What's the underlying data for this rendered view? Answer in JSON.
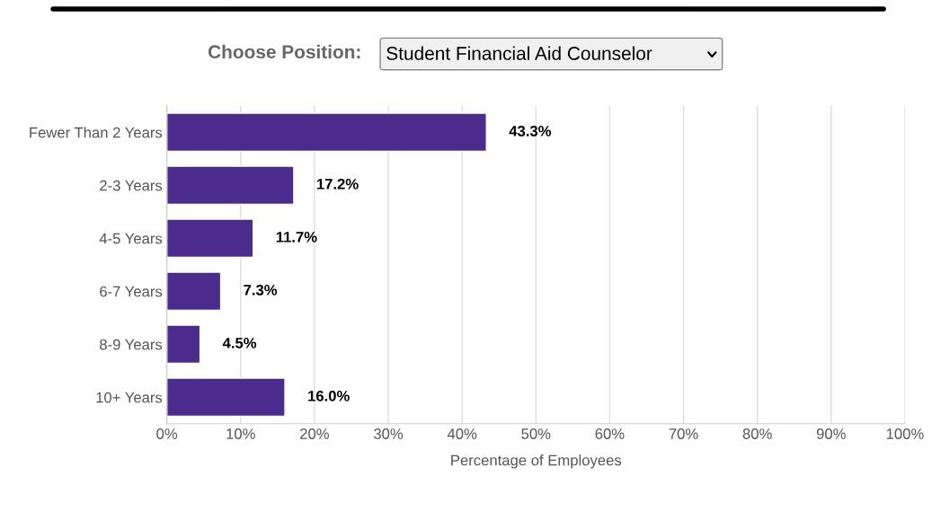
{
  "chart_data": {
    "type": "bar",
    "orientation": "horizontal",
    "categories": [
      "Fewer Than 2 Years",
      "2-3 Years",
      "4-5 Years",
      "6-7 Years",
      "8-9 Years",
      "10+ Years"
    ],
    "values": [
      43.3,
      17.2,
      11.7,
      7.3,
      4.5,
      16.0
    ],
    "value_labels": [
      "43.3%",
      "17.2%",
      "11.7%",
      "7.3%",
      "4.5%",
      "16.0%"
    ],
    "color": "#4b2c8c",
    "xlim": [
      0,
      100
    ],
    "xticks": [
      {
        "value": 0,
        "label": "0%"
      },
      {
        "value": 10,
        "label": "10%"
      },
      {
        "value": 20,
        "label": "20%"
      },
      {
        "value": 30,
        "label": "30%"
      },
      {
        "value": 40,
        "label": "40%"
      },
      {
        "value": 50,
        "label": "50%"
      },
      {
        "value": 60,
        "label": "60%"
      },
      {
        "value": 70,
        "label": "70%"
      },
      {
        "value": 80,
        "label": "80%"
      },
      {
        "value": 90,
        "label": "90%"
      },
      {
        "value": 100,
        "label": "100%"
      }
    ],
    "xlabel": "Percentage of Employees",
    "grid": "x",
    "annotations": [
      "Choose Position:",
      "Student Financial Aid Counselor"
    ]
  }
}
